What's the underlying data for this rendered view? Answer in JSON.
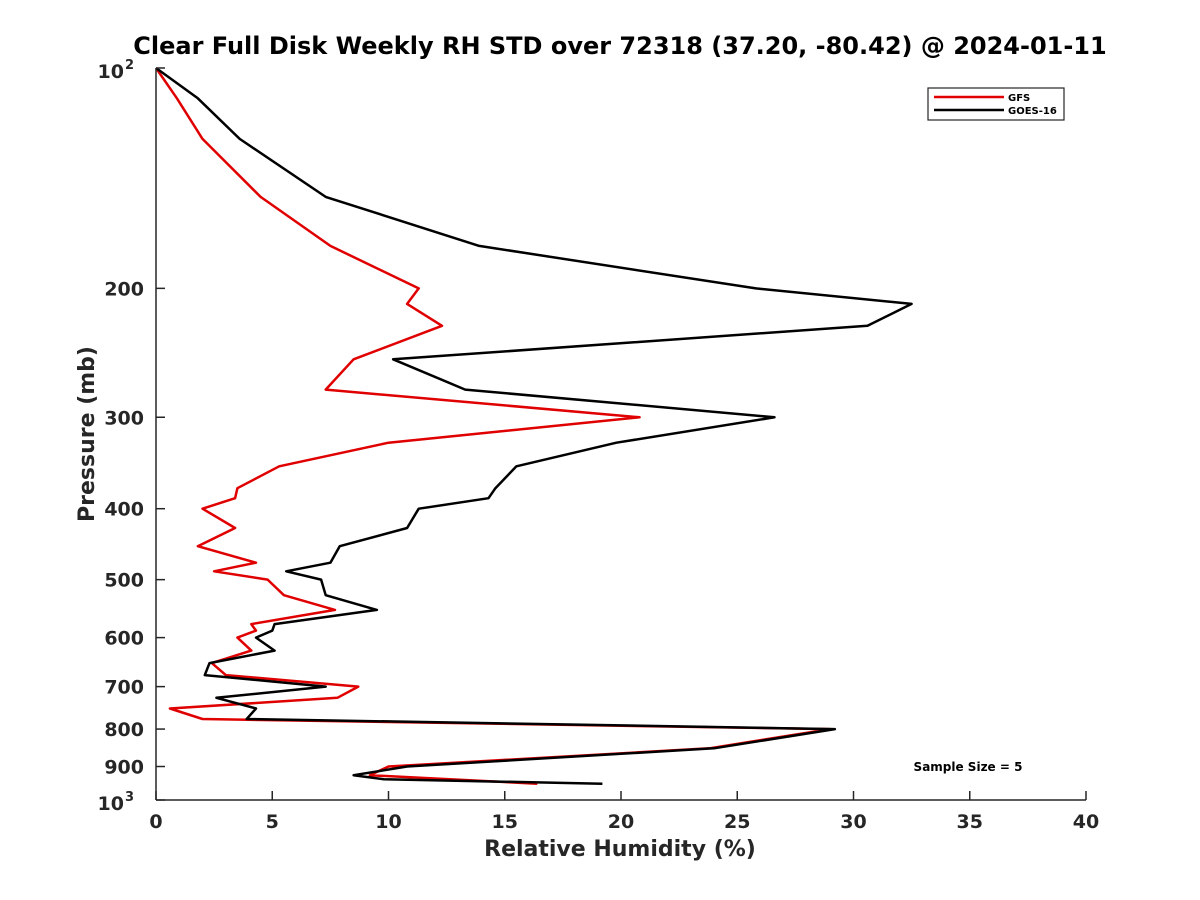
{
  "chart_data": {
    "type": "line",
    "title": "Clear Full Disk Weekly RH STD over 72318 (37.20, -80.42) @ 2024-01-11",
    "xlabel": "Relative Humidity (%)",
    "ylabel": "Pressure (mb)",
    "xlim": [
      0,
      40
    ],
    "ylim": [
      100,
      1000
    ],
    "yscale": "log",
    "y_reversed": true,
    "grid": false,
    "legend_position": "top-right",
    "x_ticks": [
      "0",
      "5",
      "10",
      "15",
      "20",
      "25",
      "30",
      "35",
      "40"
    ],
    "x_tick_values": [
      0,
      5,
      10,
      15,
      20,
      25,
      30,
      35,
      40
    ],
    "y_ticks": [
      {
        "value": 100,
        "base": "10",
        "sup": "2"
      },
      {
        "value": 200,
        "label": "200"
      },
      {
        "value": 300,
        "label": "300"
      },
      {
        "value": 400,
        "label": "400"
      },
      {
        "value": 500,
        "label": "500"
      },
      {
        "value": 600,
        "label": "600"
      },
      {
        "value": 700,
        "label": "700"
      },
      {
        "value": 800,
        "label": "800"
      },
      {
        "value": 900,
        "label": "900"
      },
      {
        "value": 1000,
        "base": "10",
        "sup": "3"
      }
    ],
    "annotation": "Sample Size = 5",
    "series": [
      {
        "name": "GFS",
        "color": "#e00000",
        "points": [
          [
            0.0,
            100
          ],
          [
            0.9,
            110
          ],
          [
            2.0,
            125
          ],
          [
            4.5,
            150
          ],
          [
            7.5,
            175
          ],
          [
            11.3,
            200
          ],
          [
            10.8,
            210
          ],
          [
            12.3,
            225
          ],
          [
            8.5,
            250
          ],
          [
            7.3,
            275
          ],
          [
            20.8,
            300
          ],
          [
            10.0,
            325
          ],
          [
            5.3,
            350
          ],
          [
            3.5,
            375
          ],
          [
            3.4,
            387
          ],
          [
            2.0,
            400
          ],
          [
            3.4,
            425
          ],
          [
            1.8,
            450
          ],
          [
            4.3,
            474
          ],
          [
            2.5,
            487
          ],
          [
            4.8,
            500
          ],
          [
            5.5,
            525
          ],
          [
            7.7,
            550
          ],
          [
            4.1,
            575
          ],
          [
            4.3,
            587
          ],
          [
            3.5,
            600
          ],
          [
            4.1,
            625
          ],
          [
            2.4,
            650
          ],
          [
            3.0,
            675
          ],
          [
            8.7,
            700
          ],
          [
            7.8,
            725
          ],
          [
            0.6,
            750
          ],
          [
            2.0,
            775
          ],
          [
            29.0,
            800
          ],
          [
            23.8,
            850
          ],
          [
            10.0,
            900
          ],
          [
            9.2,
            925
          ],
          [
            16.4,
            950
          ]
        ]
      },
      {
        "name": "GOES-16",
        "color": "#000000",
        "points": [
          [
            0.0,
            100
          ],
          [
            1.8,
            110
          ],
          [
            3.6,
            125
          ],
          [
            7.3,
            150
          ],
          [
            13.9,
            175
          ],
          [
            25.8,
            200
          ],
          [
            32.5,
            210
          ],
          [
            30.6,
            225
          ],
          [
            10.2,
            250
          ],
          [
            13.3,
            275
          ],
          [
            26.6,
            300
          ],
          [
            19.8,
            325
          ],
          [
            15.5,
            350
          ],
          [
            14.6,
            375
          ],
          [
            14.3,
            387
          ],
          [
            11.3,
            400
          ],
          [
            10.8,
            425
          ],
          [
            7.9,
            450
          ],
          [
            7.5,
            474
          ],
          [
            5.6,
            487
          ],
          [
            7.1,
            500
          ],
          [
            7.3,
            525
          ],
          [
            9.5,
            550
          ],
          [
            5.1,
            575
          ],
          [
            5.0,
            587
          ],
          [
            4.3,
            600
          ],
          [
            5.1,
            625
          ],
          [
            2.3,
            650
          ],
          [
            2.1,
            675
          ],
          [
            7.3,
            700
          ],
          [
            2.6,
            725
          ],
          [
            4.3,
            750
          ],
          [
            3.9,
            775
          ],
          [
            29.2,
            800
          ],
          [
            24.0,
            850
          ],
          [
            10.8,
            900
          ],
          [
            8.5,
            925
          ],
          [
            9.8,
            937
          ],
          [
            19.2,
            950
          ]
        ]
      }
    ]
  }
}
